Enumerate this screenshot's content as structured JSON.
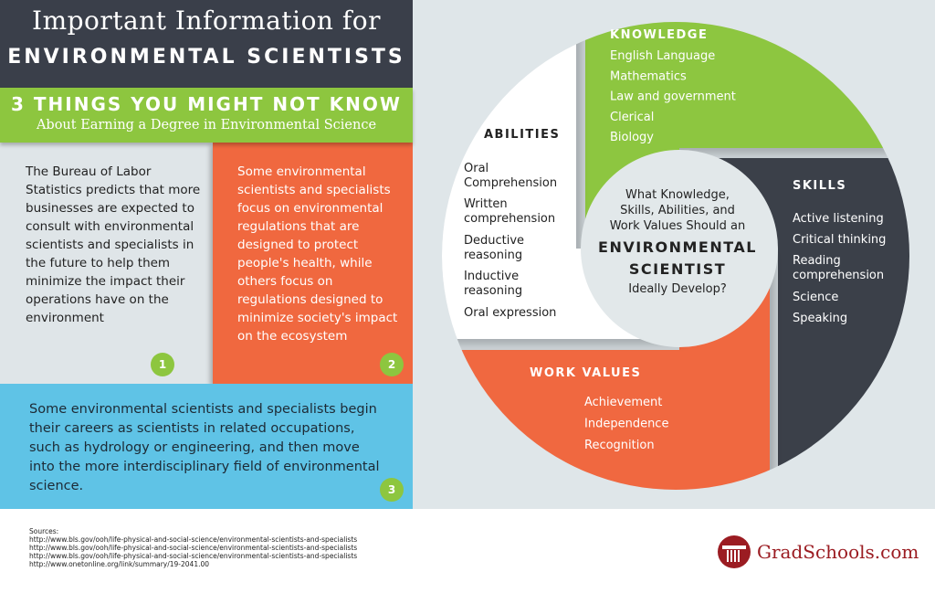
{
  "header": {
    "title_line1": "Important Information for",
    "title_line2": "ENVIRONMENTAL SCIENTISTS"
  },
  "subheader": {
    "line1": "3 THINGS YOU MIGHT NOT KNOW",
    "line2": "About Earning a Degree in Environmental Science"
  },
  "facts": [
    {
      "number": "1",
      "text": "The Bureau of Labor Statistics predicts that more businesses are expected to consult with environmental scientists and specialists in the future to help them minimize the impact their operations have on the environment"
    },
    {
      "number": "2",
      "text": "Some environmental scientists and specialists focus on environmental regulations that are designed to protect people's health, while others focus on regulations designed to minimize society's impact on the ecosystem"
    },
    {
      "number": "3",
      "text": "Some environmental scientists and specialists begin their careers as scientists in related occupations, such as hydrology or engineering, and then move into the more interdisciplinary field of environmental science."
    }
  ],
  "wheel": {
    "center": {
      "line1": "What Knowledge,",
      "line2": "Skills, Abilities, and",
      "line3": "Work Values Should an",
      "line4": "ENVIRONMENTAL",
      "line5": "SCIENTIST",
      "line6": "Ideally Develop?"
    },
    "knowledge": {
      "title": "KNOWLEDGE",
      "color": "#8dc63f",
      "items": [
        "English Language",
        "Mathematics",
        "Law and government",
        "Clerical",
        "Biology"
      ]
    },
    "skills": {
      "title": "SKILLS",
      "color": "#3a3f4a",
      "items": [
        "Active listening",
        "Critical thinking",
        "Reading",
        "comprehension",
        "Science",
        "Speaking"
      ]
    },
    "abilities": {
      "title": "ABILITIES",
      "color": "#ffffff",
      "items": [
        "Oral",
        "Comprehension",
        "Written",
        "comprehension",
        "Deductive",
        "reasoning",
        "Inductive",
        "reasoning",
        "Oral expression"
      ]
    },
    "work_values": {
      "title": "WORK VALUES",
      "color": "#f0683f",
      "items": [
        "Achievement",
        "Independence",
        "Recognition"
      ]
    }
  },
  "sources": {
    "label": "Sources:",
    "links": [
      "http://www.bls.gov/ooh/life-physical-and-social-science/environmental-scientists-and-specialists",
      "http://www.bls.gov/ooh/life-physical-and-social-science/environmental-scientists-and-specialists",
      "http://www.bls.gov/ooh/life-physical-and-social-science/environmental-scientists-and-specialists",
      "http://www.onetonline.org/link/summary/19-2041.00"
    ]
  },
  "logo": {
    "text": "GradSchools.com",
    "color": "#9b1c22"
  }
}
